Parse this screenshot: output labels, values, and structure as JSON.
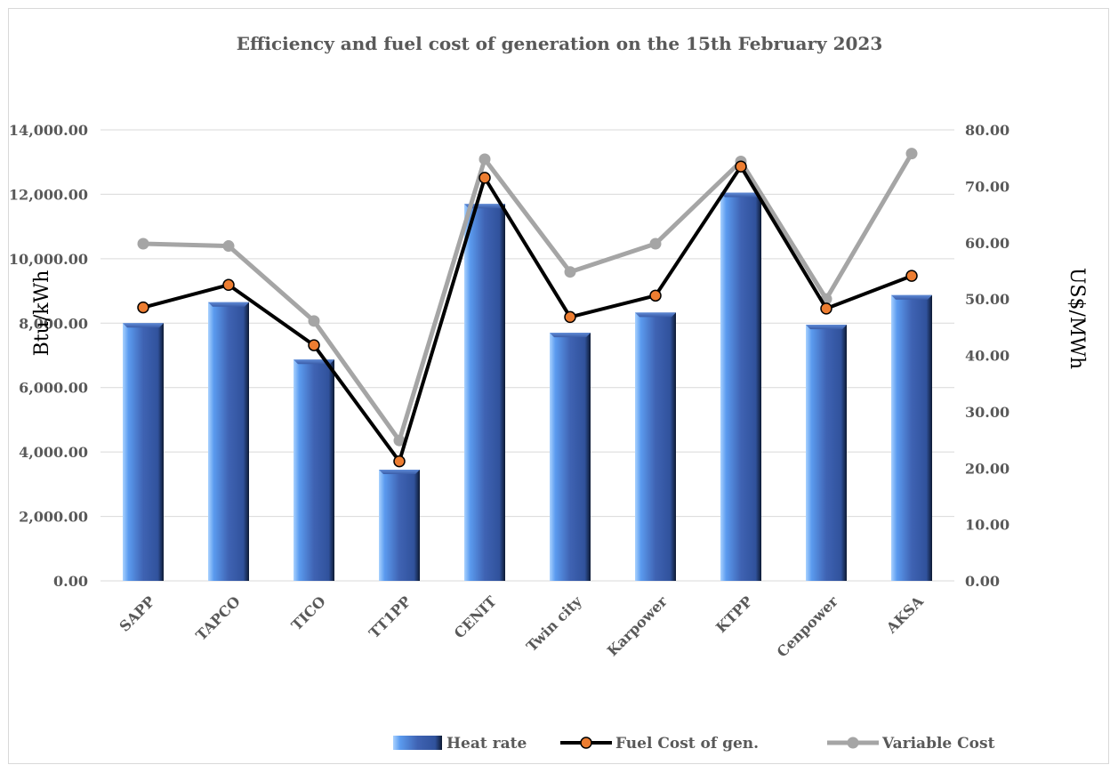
{
  "chart_data": {
    "type": "bar",
    "title": "Efficiency and fuel cost of generation on the 15th February 2023",
    "categories": [
      "SAPP",
      "TAPCO",
      "TICO",
      "TT1PP",
      "CENIT",
      "Twin city",
      "Karpower",
      "KTPP",
      "Cenpower",
      "AKSA"
    ],
    "ylabel": "Btu/kWh",
    "y2label": "US$/MWh",
    "ylim": [
      0,
      14000
    ],
    "y2lim": [
      0,
      80
    ],
    "yticks": [
      "0.00",
      "2,000.00",
      "4,000.00",
      "6,000.00",
      "8,000.00",
      "10,000.00",
      "12,000.00",
      "14,000.00"
    ],
    "y2ticks": [
      "0.00",
      "10.00",
      "20.00",
      "30.00",
      "40.00",
      "50.00",
      "60.00",
      "70.00",
      "80.00"
    ],
    "grid": true,
    "legend_position": "bottom",
    "series": [
      {
        "name": "Heat rate",
        "type": "bar",
        "axis": "left",
        "color": "#4472c4",
        "values": [
          8000,
          8650,
          6870,
          3450,
          11700,
          7700,
          8330,
          12050,
          7950,
          8870
        ]
      },
      {
        "name": "Fuel Cost of gen.",
        "type": "line",
        "axis": "right",
        "color": "#000000",
        "marker_color": "#ed7d31",
        "values": [
          48.5,
          52.5,
          41.8,
          21.2,
          71.5,
          46.8,
          50.6,
          73.5,
          48.3,
          54.1
        ]
      },
      {
        "name": "Variable Cost",
        "type": "line",
        "axis": "right",
        "color": "#a5a5a5",
        "marker_color": "#a5a5a5",
        "values": [
          59.8,
          59.4,
          46.1,
          24.9,
          74.8,
          54.8,
          59.8,
          74.4,
          50.0,
          75.8
        ]
      }
    ]
  }
}
